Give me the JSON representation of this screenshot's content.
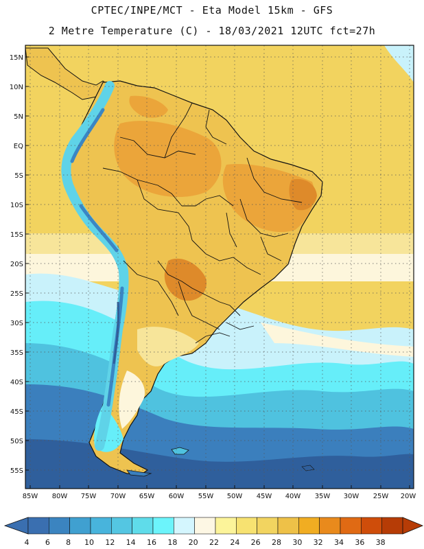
{
  "header": {
    "line1": "CPTEC/INPE/MCT -  Eta Model 15km - GFS",
    "line2": "2 Metre Temperature (C) - 18/03/2021 12UTC fct=27h"
  },
  "axes": {
    "lat_labels": [
      "15N",
      "10N",
      "5N",
      "EQ",
      "5S",
      "10S",
      "15S",
      "20S",
      "25S",
      "30S",
      "35S",
      "40S",
      "45S",
      "50S",
      "55S"
    ],
    "lon_labels": [
      "85W",
      "80W",
      "75W",
      "70W",
      "65W",
      "60W",
      "55W",
      "50W",
      "45W",
      "40W",
      "35W",
      "30W",
      "25W",
      "20W"
    ]
  },
  "colorbar": {
    "labels": [
      "4",
      "6",
      "8",
      "10",
      "12",
      "14",
      "16",
      "18",
      "20",
      "22",
      "24",
      "26",
      "28",
      "30",
      "32",
      "34",
      "36",
      "38"
    ],
    "colors": [
      "#3a6fb0",
      "#3b84c0",
      "#40a0d0",
      "#48b4dc",
      "#54c6e2",
      "#5fdcea",
      "#6cf4fb",
      "#d4f6fe",
      "#fdf7e4",
      "#fcf49a",
      "#f7e271",
      "#f2d460",
      "#eec148",
      "#f1ad22",
      "#e98a1c",
      "#e06a14",
      "#cf4d0a",
      "#b63c06"
    ],
    "low_color": "#3a6fb0",
    "high_color": "#b63c06"
  },
  "field_colors": {
    "deep_ocean": "#2f5f9c",
    "ocean_blue": "#3b7fbd",
    "ocean_cyan": "#4fc2df",
    "cyan_band": "#66eef9",
    "pale_blue": "#c9f2fb",
    "cream": "#fdf6dc",
    "light_yellow": "#f7e59a",
    "tropical_ocean": "#f2d35f",
    "land_warm": "#eec350",
    "land_hot": "#eba53a",
    "land_hottest": "#de8a2a",
    "andes_cold": "#5fd3e8",
    "andes_colder": "#3a86c4",
    "land_outline": "#111111",
    "grid": "#555555"
  }
}
